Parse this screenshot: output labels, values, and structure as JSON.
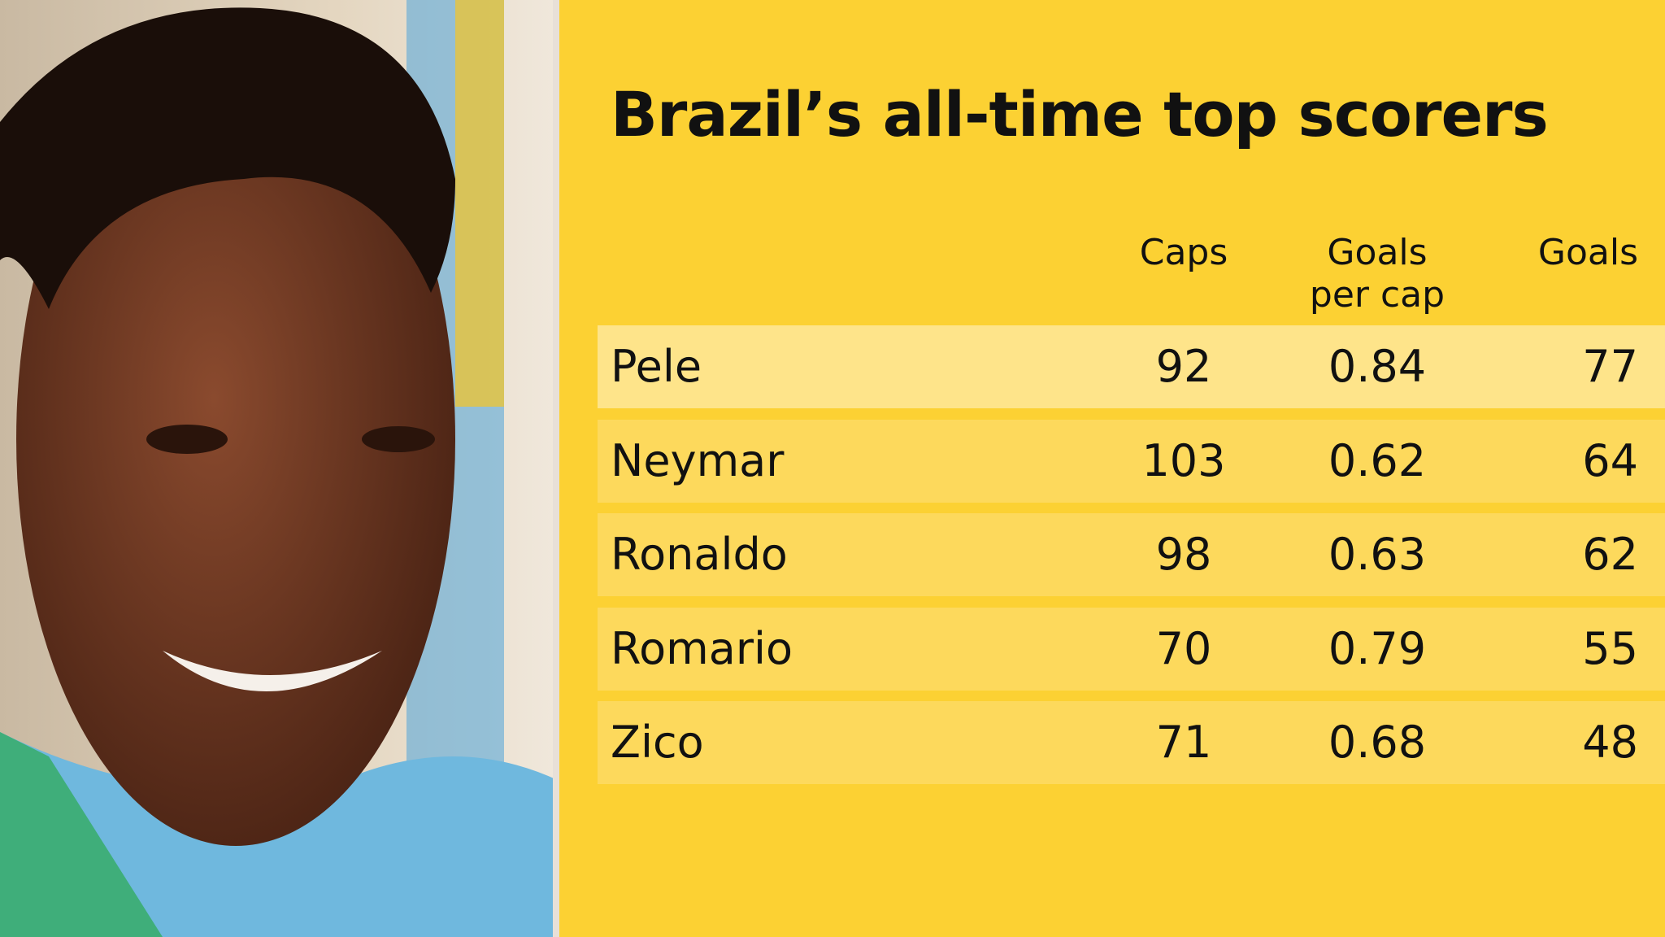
{
  "header": {
    "title": "Brazil’s all-time top scorers"
  },
  "table": {
    "columns": [
      "Caps",
      "Goals per cap",
      "Goals"
    ],
    "rows": [
      [
        "Pele",
        92,
        0.84,
        77
      ],
      [
        "Neymar",
        103,
        0.62,
        64
      ],
      [
        "Ronaldo",
        98,
        0.63,
        62
      ],
      [
        "Romario",
        70,
        0.79,
        55
      ],
      [
        "Zico",
        71,
        0.68,
        48
      ]
    ]
  }
}
